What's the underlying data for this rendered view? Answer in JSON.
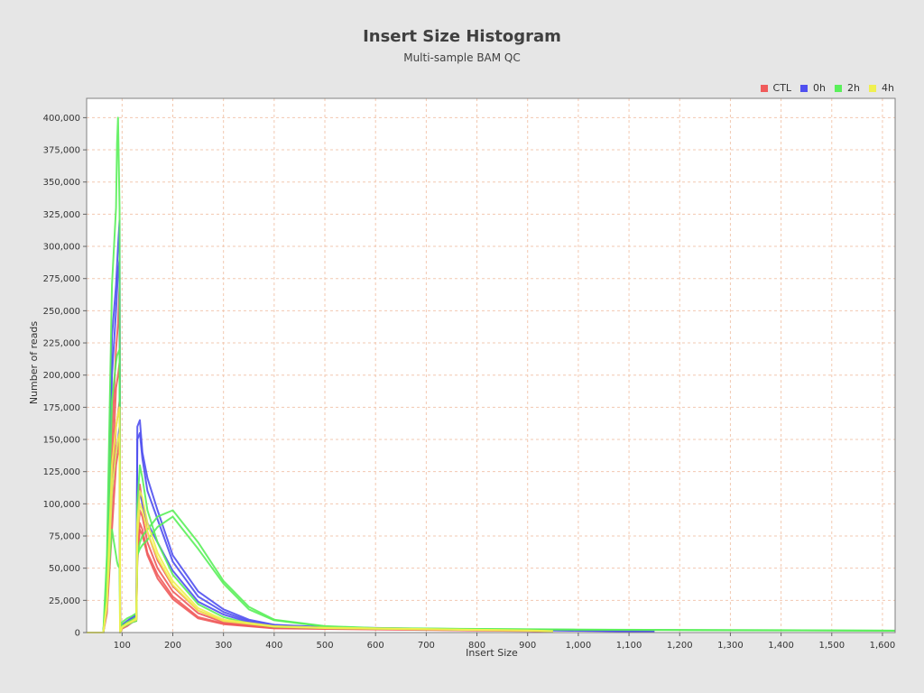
{
  "chart_data": {
    "type": "line",
    "title": "Insert Size Histogram",
    "subtitle": "Multi-sample BAM QC",
    "xlabel": "Insert Size",
    "ylabel": "Number of reads",
    "xlim": [
      30,
      1625
    ],
    "ylim": [
      0,
      415000
    ],
    "grid": true,
    "legend_position": "top-right",
    "x_ticks": [
      100,
      200,
      300,
      400,
      500,
      600,
      700,
      800,
      900,
      1000,
      1100,
      1200,
      1300,
      1400,
      1500,
      1600
    ],
    "x_tick_labels": [
      "100",
      "200",
      "300",
      "400",
      "500",
      "600",
      "700",
      "800",
      "900",
      "1,000",
      "1,100",
      "1,200",
      "1,300",
      "1,400",
      "1,500",
      "1,600"
    ],
    "y_ticks": [
      0,
      25000,
      50000,
      75000,
      100000,
      125000,
      150000,
      175000,
      200000,
      225000,
      250000,
      275000,
      300000,
      325000,
      350000,
      375000,
      400000
    ],
    "y_tick_labels": [
      "0",
      "25,000",
      "50,000",
      "75,000",
      "100,000",
      "125,000",
      "150,000",
      "175,000",
      "200,000",
      "225,000",
      "250,000",
      "275,000",
      "300,000",
      "325,000",
      "350,000",
      "375,000",
      "400,000"
    ],
    "legend": [
      {
        "name": "CTL",
        "color": "#f05b5b"
      },
      {
        "name": "0h",
        "color": "#5050f0"
      },
      {
        "name": "2h",
        "color": "#5af05a"
      },
      {
        "name": "4h",
        "color": "#f0f050"
      }
    ],
    "series": [
      {
        "group": "CTL",
        "color": "#f05b5b",
        "x": [
          30,
          63,
          70,
          80,
          88,
          92,
          95,
          96,
          100,
          110,
          120,
          128,
          130,
          135,
          140,
          150,
          170,
          200,
          250,
          300,
          400,
          500,
          600,
          700,
          800,
          900,
          950
        ],
        "y": [
          0,
          0,
          30000,
          150000,
          220000,
          240000,
          270000,
          0,
          5000,
          8000,
          10000,
          12000,
          70000,
          95000,
          90000,
          70000,
          50000,
          32000,
          15000,
          8000,
          4000,
          3500,
          3000,
          2500,
          2000,
          1500,
          1000
        ]
      },
      {
        "group": "CTL",
        "color": "#f05b5b",
        "x": [
          30,
          63,
          70,
          80,
          88,
          92,
          95,
          96,
          100,
          110,
          120,
          128,
          130,
          135,
          140,
          150,
          170,
          200,
          250,
          300,
          400,
          500,
          600,
          700,
          800,
          900,
          950
        ],
        "y": [
          0,
          0,
          20000,
          100000,
          160000,
          170000,
          180000,
          0,
          4000,
          6000,
          9000,
          10000,
          60000,
          85000,
          80000,
          62000,
          45000,
          28000,
          12000,
          7000,
          3500,
          3000,
          2600,
          2200,
          1800,
          1400,
          900
        ]
      },
      {
        "group": "CTL",
        "color": "#f05b5b",
        "x": [
          30,
          63,
          70,
          80,
          88,
          92,
          95,
          96,
          100,
          110,
          120,
          128,
          130,
          135,
          140,
          150,
          170,
          200,
          250,
          300,
          400,
          500,
          600,
          700,
          800,
          900,
          950
        ],
        "y": [
          0,
          0,
          15000,
          80000,
          130000,
          140000,
          150000,
          0,
          3000,
          5000,
          8000,
          9000,
          55000,
          80000,
          76000,
          60000,
          42000,
          26000,
          11000,
          6500,
          3200,
          2800,
          2400,
          2000,
          1600,
          1200,
          800
        ]
      },
      {
        "group": "CTL",
        "color": "#f05b5b",
        "x": [
          30,
          63,
          70,
          80,
          88,
          92,
          95,
          96,
          100,
          110,
          120,
          128,
          130,
          135,
          140,
          150,
          170,
          200,
          250,
          300,
          400,
          500,
          600,
          700,
          800,
          900,
          950
        ],
        "y": [
          0,
          0,
          25000,
          120000,
          190000,
          200000,
          210000,
          0,
          4500,
          7000,
          9500,
          11000,
          80000,
          115000,
          100000,
          78000,
          56000,
          36000,
          17000,
          9000,
          4500,
          3800,
          3200,
          2700,
          2200,
          1600,
          1100
        ]
      },
      {
        "group": "0h",
        "color": "#5050f0",
        "x": [
          30,
          63,
          70,
          80,
          88,
          92,
          95,
          96,
          100,
          110,
          120,
          128,
          130,
          135,
          140,
          150,
          170,
          200,
          250,
          300,
          350,
          400,
          500,
          600,
          700,
          800,
          900,
          1000,
          1100,
          1150
        ],
        "y": [
          0,
          0,
          40000,
          230000,
          270000,
          300000,
          320000,
          0,
          6000,
          9000,
          12000,
          14000,
          160000,
          165000,
          140000,
          120000,
          95000,
          60000,
          32000,
          18000,
          10000,
          6000,
          4200,
          3600,
          3000,
          2600,
          2200,
          1800,
          1200,
          800
        ]
      },
      {
        "group": "0h",
        "color": "#5050f0",
        "x": [
          30,
          63,
          70,
          80,
          88,
          92,
          95,
          96,
          100,
          110,
          120,
          128,
          130,
          135,
          140,
          150,
          170,
          200,
          250,
          300,
          350,
          400,
          500,
          600,
          700,
          800,
          900,
          1000,
          1100,
          1150
        ],
        "y": [
          0,
          0,
          35000,
          200000,
          250000,
          280000,
          290000,
          0,
          5500,
          8500,
          11000,
          13000,
          150000,
          155000,
          135000,
          110000,
          88000,
          55000,
          28000,
          16000,
          9000,
          5500,
          4000,
          3400,
          2800,
          2400,
          2000,
          1600,
          1100,
          700
        ]
      },
      {
        "group": "0h",
        "color": "#5050f0",
        "x": [
          30,
          63,
          70,
          80,
          88,
          92,
          95,
          96,
          100,
          110,
          120,
          128,
          130,
          135,
          140,
          150,
          170,
          200,
          250,
          300,
          350,
          400,
          500,
          600,
          700,
          800,
          900,
          1000,
          1100,
          1150
        ],
        "y": [
          0,
          0,
          20000,
          110000,
          140000,
          150000,
          160000,
          0,
          4000,
          6000,
          8000,
          10000,
          90000,
          110000,
          100000,
          85000,
          70000,
          48000,
          24000,
          14000,
          8000,
          5000,
          3800,
          3200,
          2600,
          2200,
          1800,
          1400,
          1000,
          600
        ]
      },
      {
        "group": "2h",
        "color": "#5af05a",
        "x": [
          30,
          63,
          70,
          80,
          88,
          90,
          92,
          95,
          96,
          100,
          110,
          120,
          128,
          130,
          135,
          140,
          150,
          170,
          200,
          220,
          250,
          300,
          350,
          400,
          500,
          600,
          800,
          1000,
          1200,
          1400,
          1625
        ],
        "y": [
          0,
          0,
          60000,
          270000,
          330000,
          380000,
          400000,
          330000,
          0,
          8000,
          11000,
          13000,
          15000,
          60000,
          70000,
          75000,
          80000,
          90000,
          95000,
          85000,
          70000,
          40000,
          20000,
          10000,
          5000,
          3500,
          2800,
          2300,
          2000,
          1800,
          1500
        ]
      },
      {
        "group": "2h",
        "color": "#5af05a",
        "x": [
          30,
          63,
          70,
          80,
          88,
          90,
          92,
          95,
          96,
          100,
          110,
          120,
          128,
          130,
          135,
          140,
          150,
          170,
          200,
          220,
          250,
          300,
          350,
          400,
          500,
          600,
          800,
          1000,
          1200,
          1400,
          1625
        ],
        "y": [
          0,
          0,
          30000,
          80000,
          60000,
          55000,
          52000,
          50000,
          0,
          4000,
          6000,
          8000,
          9000,
          60000,
          65000,
          68000,
          72000,
          82000,
          90000,
          80000,
          65000,
          38000,
          18000,
          9500,
          4800,
          3300,
          2700,
          2200,
          1900,
          1700,
          1400
        ]
      },
      {
        "group": "2h",
        "color": "#5af05a",
        "x": [
          30,
          63,
          70,
          80,
          88,
          90,
          95,
          96,
          100,
          110,
          120,
          128,
          130,
          135,
          140,
          150,
          170,
          200,
          250,
          300,
          350,
          400,
          500,
          600,
          700,
          800,
          900,
          950
        ],
        "y": [
          0,
          0,
          40000,
          180000,
          210000,
          215000,
          220000,
          0,
          5000,
          8000,
          10000,
          12000,
          100000,
          130000,
          120000,
          95000,
          70000,
          45000,
          22000,
          12000,
          7000,
          4500,
          3500,
          3000,
          2600,
          2200,
          1800,
          1200
        ]
      },
      {
        "group": "4h",
        "color": "#f0f050",
        "x": [
          30,
          63,
          70,
          80,
          88,
          92,
          95,
          96,
          100,
          110,
          120,
          128,
          130,
          135,
          140,
          150,
          170,
          200,
          250,
          300,
          400,
          500,
          600,
          700,
          800,
          900,
          950
        ],
        "y": [
          0,
          0,
          25000,
          130000,
          160000,
          170000,
          175000,
          0,
          4500,
          7000,
          9000,
          11000,
          85000,
          110000,
          105000,
          85000,
          62000,
          40000,
          19000,
          10000,
          5000,
          3800,
          3200,
          2700,
          2200,
          1700,
          1100
        ]
      },
      {
        "group": "4h",
        "color": "#f0f050",
        "x": [
          30,
          63,
          70,
          80,
          88,
          92,
          95,
          96,
          100,
          110,
          120,
          128,
          130,
          135,
          140,
          150,
          170,
          200,
          250,
          300,
          400,
          500,
          600,
          700,
          800,
          900,
          950
        ],
        "y": [
          0,
          0,
          20000,
          110000,
          140000,
          150000,
          155000,
          0,
          4000,
          6500,
          8500,
          10000,
          75000,
          100000,
          95000,
          78000,
          58000,
          37000,
          17000,
          9000,
          4600,
          3500,
          3000,
          2500,
          2000,
          1500,
          1000
        ]
      }
    ]
  }
}
